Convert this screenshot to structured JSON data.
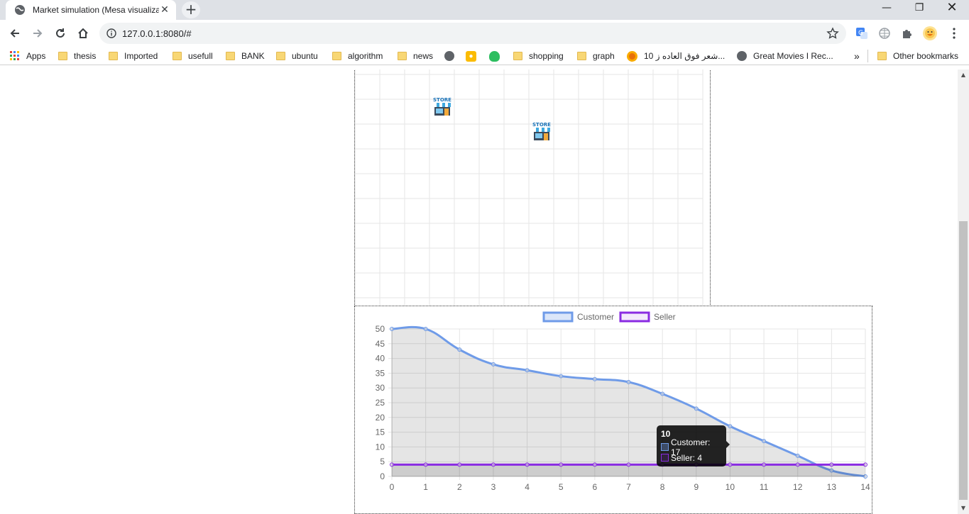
{
  "browser": {
    "tab_title": "Market simulation (Mesa visualization)",
    "url": "127.0.0.1:8080/#",
    "bookmarks": [
      {
        "label": "Apps",
        "kind": "apps"
      },
      {
        "label": "thesis",
        "kind": "folder"
      },
      {
        "label": "Imported",
        "kind": "folder"
      },
      {
        "label": "usefull",
        "kind": "folder"
      },
      {
        "label": "BANK",
        "kind": "folder"
      },
      {
        "label": "ubuntu",
        "kind": "folder"
      },
      {
        "label": "algorithm",
        "kind": "folder"
      },
      {
        "label": "news",
        "kind": "folder"
      },
      {
        "label": "",
        "kind": "globe"
      },
      {
        "label": "",
        "kind": "bulb"
      },
      {
        "label": "",
        "kind": "evernote"
      },
      {
        "label": "shopping",
        "kind": "folder"
      },
      {
        "label": "graph",
        "kind": "folder"
      },
      {
        "label": "10 شعر فوق العاده ز...",
        "kind": "circle"
      },
      {
        "label": "Great Movies I Rec...",
        "kind": "globe"
      }
    ],
    "overflow_label": "»",
    "other_bookmarks": "Other bookmarks"
  },
  "grid": {
    "rows": 9,
    "cols": 14,
    "agents": [
      {
        "label": "STORE",
        "col": 3,
        "row": 1
      },
      {
        "label": "STORE",
        "col": 7,
        "row": 2
      }
    ]
  },
  "chart_data": {
    "type": "line",
    "x": [
      0,
      1,
      2,
      3,
      4,
      5,
      6,
      7,
      8,
      9,
      10,
      11,
      12,
      13,
      14
    ],
    "series": [
      {
        "name": "Customer",
        "color": "#6f9be8",
        "values": [
          50,
          50,
          43,
          38,
          36,
          34,
          33,
          32,
          28,
          23,
          17,
          12,
          7,
          2,
          0
        ]
      },
      {
        "name": "Seller",
        "color": "#8a2be2",
        "values": [
          4,
          4,
          4,
          4,
          4,
          4,
          4,
          4,
          4,
          4,
          4,
          4,
          4,
          4,
          4
        ]
      }
    ],
    "ylim": [
      0,
      50
    ],
    "yticks": [
      0,
      5,
      10,
      15,
      20,
      25,
      30,
      35,
      40,
      45,
      50
    ],
    "legend_position": "top",
    "grid": true,
    "tooltip": {
      "title": "10",
      "rows": [
        {
          "label": "Customer: 17",
          "color": "#6f9be8"
        },
        {
          "label": "Seller: 4",
          "color": "#8a2be2"
        }
      ]
    }
  }
}
